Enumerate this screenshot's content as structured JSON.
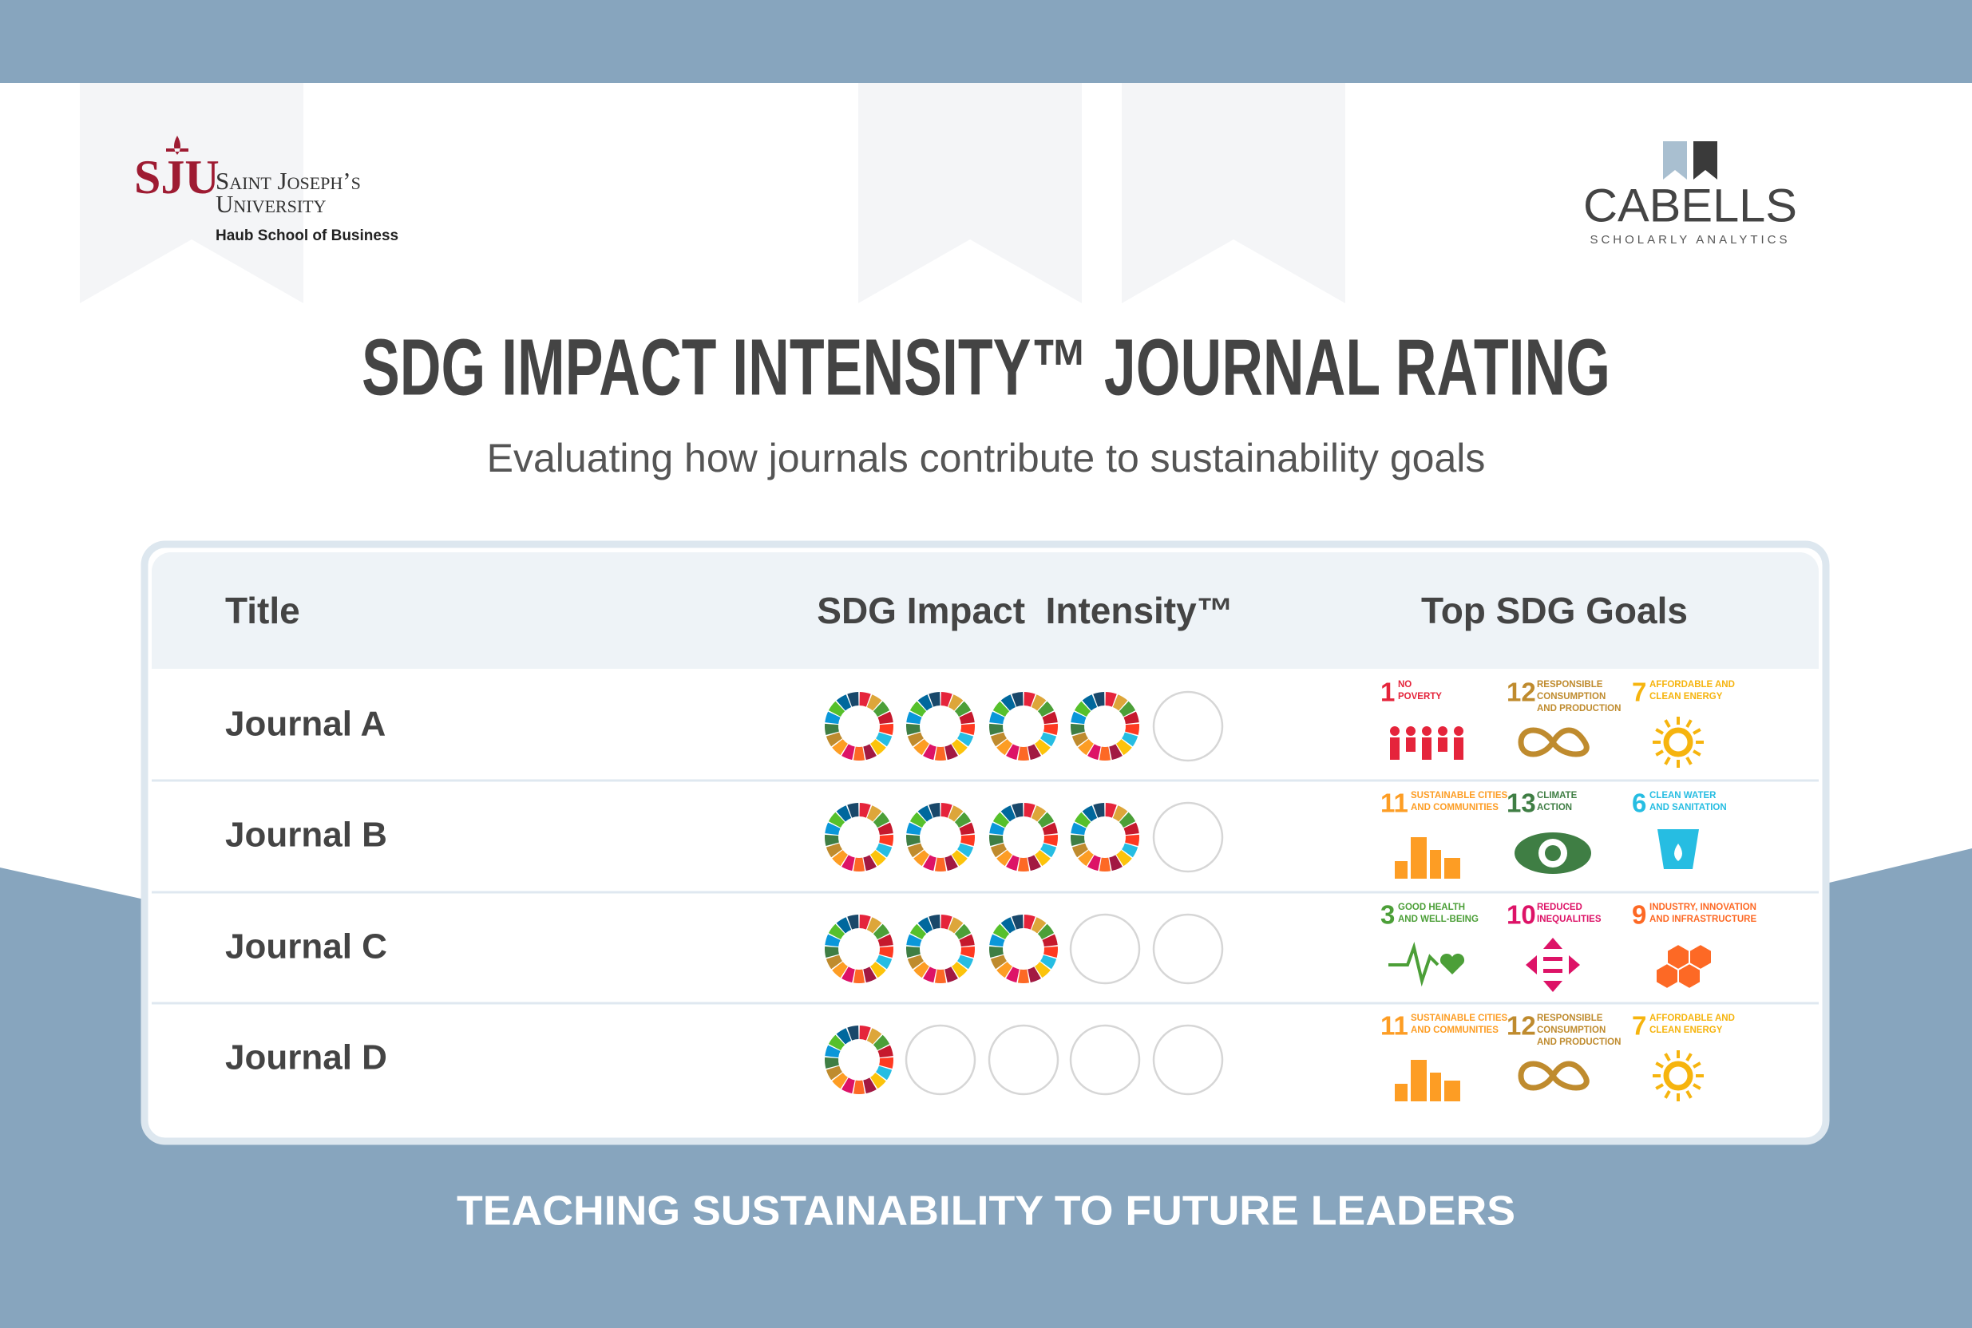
{
  "header": {
    "left_logo": {
      "mark": "SJU",
      "name_line1": "Saint Joseph’s",
      "name_line2": "University",
      "school": "Haub School of Business"
    },
    "right_logo": {
      "name": "CABELLS",
      "tagline": "SCHOLARLY ANALYTICS"
    }
  },
  "title": "SDG IMPACT INTENSITY™ JOURNAL RATING",
  "subtitle": "Evaluating how journals contribute to sustainability goals",
  "table": {
    "columns": [
      "Title",
      "SDG Impact  Intensity™",
      "Top SDG Goals"
    ],
    "rating_range": [
      0,
      5
    ],
    "rows": [
      {
        "title": "Journal A",
        "rating": 4,
        "goals": [
          {
            "number": 1,
            "label": [
              "NO",
              "POVERTY"
            ],
            "color": "#e5243b"
          },
          {
            "number": 12,
            "label": [
              "RESPONSIBLE",
              "CONSUMPTION",
              "AND PRODUCTION"
            ],
            "color": "#bf8b2e"
          },
          {
            "number": 7,
            "label": [
              "AFFORDABLE AND",
              "CLEAN ENERGY"
            ],
            "color": "#f6b40e"
          }
        ]
      },
      {
        "title": "Journal B",
        "rating": 4,
        "goals": [
          {
            "number": 11,
            "label": [
              "SUSTAINABLE CITIES",
              "AND COMMUNITIES"
            ],
            "color": "#fd9d24"
          },
          {
            "number": 13,
            "label": [
              "CLIMATE",
              "ACTION"
            ],
            "color": "#3f7e44"
          },
          {
            "number": 6,
            "label": [
              "CLEAN WATER",
              "AND SANITATION"
            ],
            "color": "#26bde2"
          }
        ]
      },
      {
        "title": "Journal C",
        "rating": 3,
        "goals": [
          {
            "number": 3,
            "label": [
              "GOOD HEALTH",
              "AND WELL-BEING"
            ],
            "color": "#4c9f38"
          },
          {
            "number": 10,
            "label": [
              "REDUCED",
              "INEQUALITIES"
            ],
            "color": "#dd1367"
          },
          {
            "number": 9,
            "label": [
              "INDUSTRY, INNOVATION",
              "AND INFRASTRUCTURE"
            ],
            "color": "#fd6925"
          }
        ]
      },
      {
        "title": "Journal D",
        "rating": 1,
        "goals": [
          {
            "number": 11,
            "label": [
              "SUSTAINABLE CITIES",
              "AND COMMUNITIES"
            ],
            "color": "#fd9d24"
          },
          {
            "number": 12,
            "label": [
              "RESPONSIBLE",
              "CONSUMPTION",
              "AND PRODUCTION"
            ],
            "color": "#bf8b2e"
          },
          {
            "number": 7,
            "label": [
              "AFFORDABLE AND",
              "CLEAN ENERGY"
            ],
            "color": "#f6b40e"
          }
        ]
      }
    ]
  },
  "footer": "TEACHING SUSTAINABILITY TO FUTURE LEADERS"
}
